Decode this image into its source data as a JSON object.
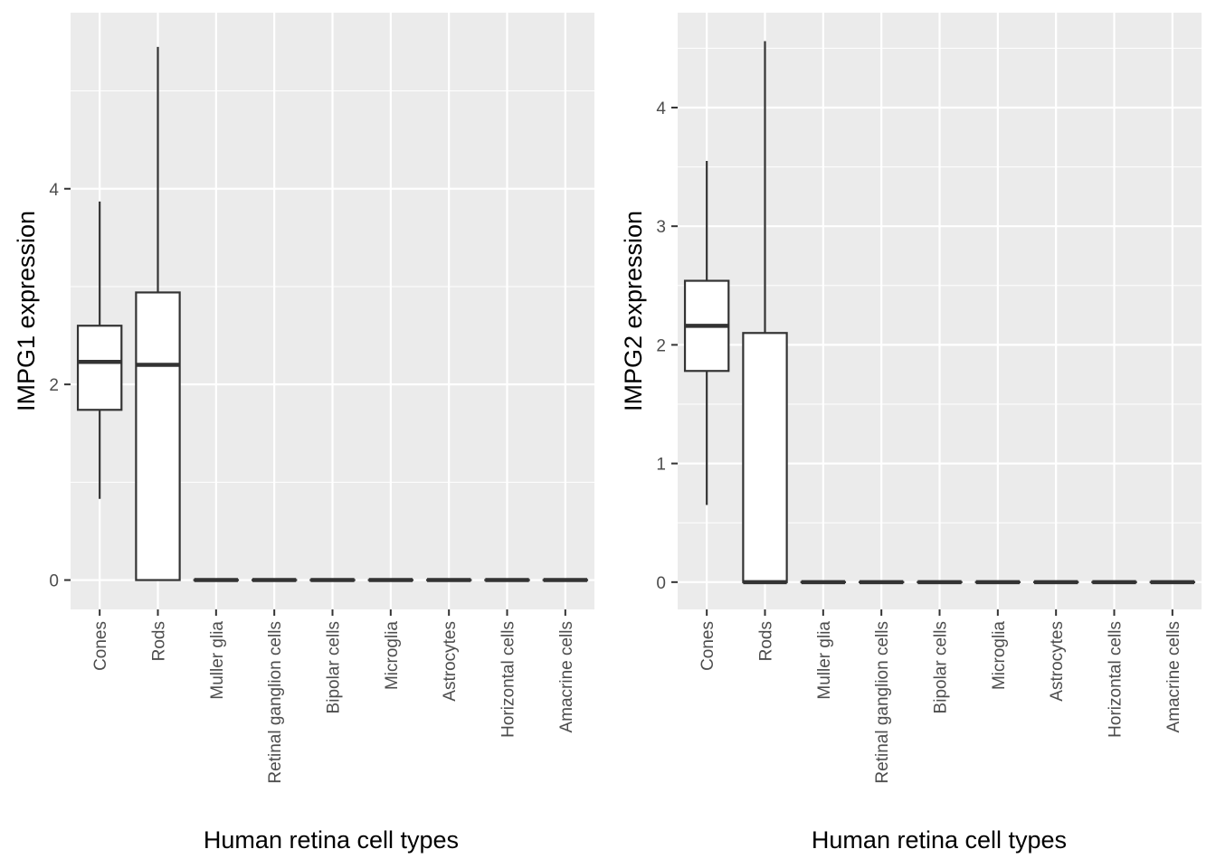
{
  "chart_data": [
    {
      "type": "boxplot",
      "xlabel": "Human retina cell types",
      "ylabel": "IMPG1 expression",
      "ylim": [
        -0.3,
        5.8
      ],
      "yticks": [
        0,
        2,
        4
      ],
      "grid": true,
      "categories": [
        "Cones",
        "Rods",
        "Muller glia",
        "Retinal ganglion cells",
        "Bipolar cells",
        "Microglia",
        "Astrocytes",
        "Horizontal cells",
        "Amacrine cells"
      ],
      "boxes": [
        {
          "min": 0.83,
          "q1": 1.74,
          "median": 2.23,
          "q3": 2.6,
          "max": 3.87
        },
        {
          "min": 0.0,
          "q1": 0.0,
          "median": 2.2,
          "q3": 2.94,
          "max": 5.45
        },
        {
          "min": 0,
          "q1": 0,
          "median": 0,
          "q3": 0,
          "max": 0
        },
        {
          "min": 0,
          "q1": 0,
          "median": 0,
          "q3": 0,
          "max": 0
        },
        {
          "min": 0,
          "q1": 0,
          "median": 0,
          "q3": 0,
          "max": 0
        },
        {
          "min": 0,
          "q1": 0,
          "median": 0,
          "q3": 0,
          "max": 0
        },
        {
          "min": 0,
          "q1": 0,
          "median": 0,
          "q3": 0,
          "max": 0
        },
        {
          "min": 0,
          "q1": 0,
          "median": 0,
          "q3": 0,
          "max": 0
        },
        {
          "min": 0,
          "q1": 0,
          "median": 0,
          "q3": 0,
          "max": 0
        }
      ]
    },
    {
      "type": "boxplot",
      "xlabel": "Human retina cell types",
      "ylabel": "IMPG2 expression",
      "ylim": [
        -0.23,
        4.8
      ],
      "yticks": [
        0,
        1,
        2,
        3,
        4
      ],
      "grid": true,
      "categories": [
        "Cones",
        "Rods",
        "Muller glia",
        "Retinal ganglion cells",
        "Bipolar cells",
        "Microglia",
        "Astrocytes",
        "Horizontal cells",
        "Amacrine cells"
      ],
      "boxes": [
        {
          "min": 0.65,
          "q1": 1.78,
          "median": 2.16,
          "q3": 2.54,
          "max": 3.55
        },
        {
          "min": 0.0,
          "q1": 0.0,
          "median": 0.0,
          "q3": 2.1,
          "max": 4.56
        },
        {
          "min": 0,
          "q1": 0,
          "median": 0,
          "q3": 0,
          "max": 0
        },
        {
          "min": 0,
          "q1": 0,
          "median": 0,
          "q3": 0,
          "max": 0
        },
        {
          "min": 0,
          "q1": 0,
          "median": 0,
          "q3": 0,
          "max": 0
        },
        {
          "min": 0,
          "q1": 0,
          "median": 0,
          "q3": 0,
          "max": 0
        },
        {
          "min": 0,
          "q1": 0,
          "median": 0,
          "q3": 0,
          "max": 0
        },
        {
          "min": 0,
          "q1": 0,
          "median": 0,
          "q3": 0,
          "max": 0
        },
        {
          "min": 0,
          "q1": 0,
          "median": 0,
          "q3": 0,
          "max": 0
        }
      ]
    }
  ],
  "colors": {
    "panel_background": "#ebebeb",
    "grid": "#ffffff",
    "box_fill": "#ffffff",
    "box_stroke": "#333333",
    "tick_text": "#4d4d4d",
    "axis_title": "#000000"
  }
}
